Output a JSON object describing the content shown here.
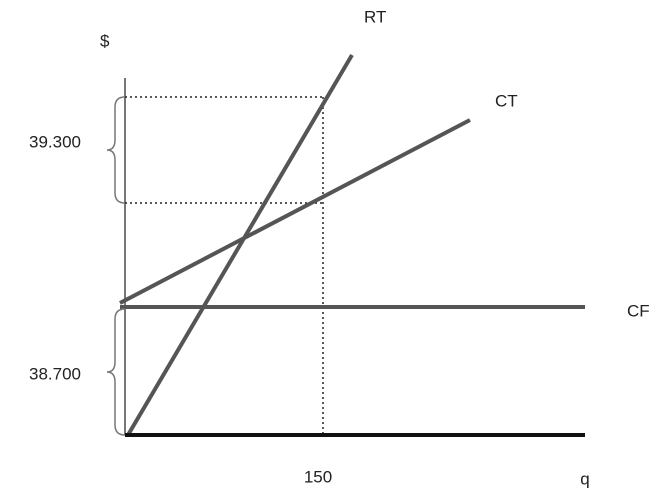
{
  "axis_labels": {
    "y": "$",
    "x": "q"
  },
  "lines": [
    {
      "label": "RT"
    },
    {
      "label": "CT"
    },
    {
      "label": "CF"
    }
  ],
  "annotations": [
    {
      "label": "39.300"
    },
    {
      "label": "38.700"
    }
  ],
  "x_marker": {
    "label": "150"
  }
}
